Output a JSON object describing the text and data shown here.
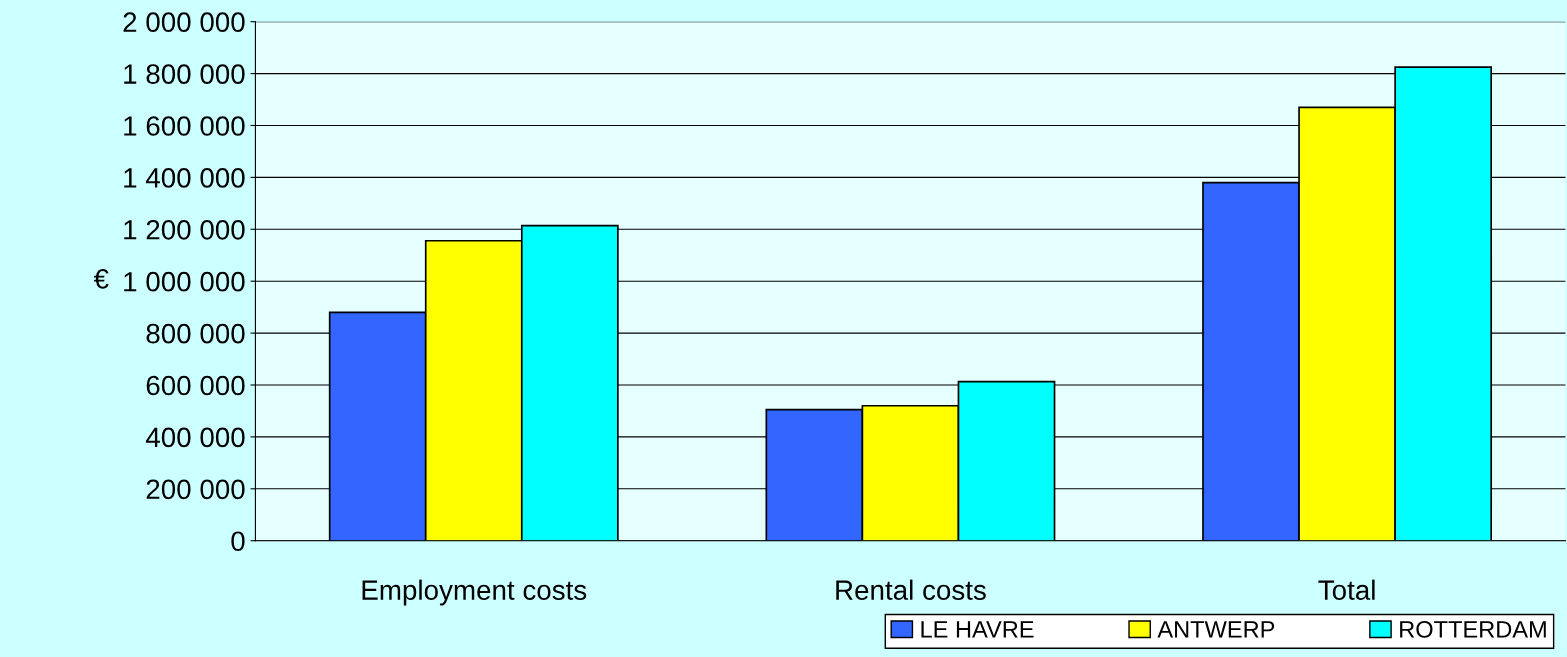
{
  "chart_data": {
    "type": "bar",
    "ylabel": "€",
    "categories": [
      "Employment costs",
      "Rental costs",
      "Total"
    ],
    "series": [
      {
        "name": "LE HAVRE",
        "color": "#3366ff",
        "values": [
          880000,
          505000,
          1380000
        ]
      },
      {
        "name": "ANTWERP",
        "color": "#ffff00",
        "values": [
          1156000,
          520000,
          1670000
        ]
      },
      {
        "name": "ROTTERDAM",
        "color": "#00ffff",
        "values": [
          1214000,
          613000,
          1825000
        ]
      }
    ],
    "ylim": [
      0,
      2000000
    ],
    "yticks": [
      {
        "value": 0,
        "label": "0"
      },
      {
        "value": 200000,
        "label": "200 000"
      },
      {
        "value": 400000,
        "label": "400 000"
      },
      {
        "value": 600000,
        "label": "600 000"
      },
      {
        "value": 800000,
        "label": "800 000"
      },
      {
        "value": 1000000,
        "label": "1 000 000"
      },
      {
        "value": 1200000,
        "label": "1 200 000"
      },
      {
        "value": 1400000,
        "label": "1 400 000"
      },
      {
        "value": 1600000,
        "label": "1 600 000"
      },
      {
        "value": 1800000,
        "label": "1 800 000"
      },
      {
        "value": 2000000,
        "label": "2 000 000"
      }
    ],
    "grid": "y",
    "legend": "bottom right"
  }
}
